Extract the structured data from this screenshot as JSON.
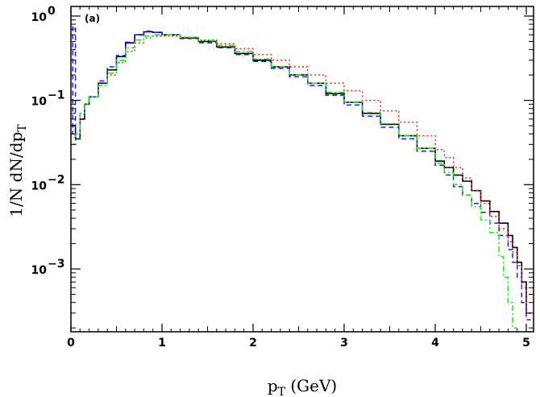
{
  "chart_data": {
    "type": "line",
    "panel_label": "(a)",
    "xlabel_main": "p",
    "xlabel_sub": "T",
    "xlabel_unit": " (GeV)",
    "ylabel_main": "1/N dN/dp",
    "ylabel_sub": "T",
    "xlim": [
      0,
      5.08
    ],
    "ylim": [
      0.00018,
      1.3
    ],
    "yscale": "log",
    "grid": false,
    "legend": "none",
    "x_ticks": [
      {
        "value": 0,
        "label": "0"
      },
      {
        "value": 1,
        "label": "1"
      },
      {
        "value": 2,
        "label": "2"
      },
      {
        "value": 3,
        "label": "3"
      },
      {
        "value": 4,
        "label": "4"
      },
      {
        "value": 5,
        "label": "5"
      }
    ],
    "y_ticks": [
      {
        "value": 1,
        "base": "10",
        "exp": "0"
      },
      {
        "value": 0.1,
        "base": "10",
        "exp": "−1"
      },
      {
        "value": 0.01,
        "base": "10",
        "exp": "−2"
      },
      {
        "value": 0.001,
        "base": "10",
        "exp": "−3"
      }
    ],
    "series": [
      {
        "color": "#000000",
        "style": "solid",
        "x": [
          0.0,
          0.05,
          0.1,
          0.15,
          0.2,
          0.3,
          0.4,
          0.5,
          0.6,
          0.7,
          0.8,
          0.9,
          1.0,
          1.2,
          1.4,
          1.6,
          1.8,
          2.0,
          2.2,
          2.4,
          2.6,
          2.8,
          3.0,
          3.2,
          3.4,
          3.6,
          3.8,
          4.0,
          4.1,
          4.2,
          4.3,
          4.4,
          4.5,
          4.6,
          4.7,
          4.8,
          4.85,
          4.9,
          4.95,
          5.0
        ],
        "y": [
          0.05,
          0.035,
          0.06,
          0.09,
          0.11,
          0.16,
          0.23,
          0.33,
          0.48,
          0.6,
          0.65,
          0.64,
          0.6,
          0.55,
          0.5,
          0.43,
          0.36,
          0.3,
          0.25,
          0.2,
          0.16,
          0.12,
          0.095,
          0.07,
          0.052,
          0.038,
          0.027,
          0.019,
          0.016,
          0.013,
          0.011,
          0.0085,
          0.0064,
          0.0048,
          0.0035,
          0.0025,
          0.0018,
          0.0012,
          0.0007,
          0.0003
        ]
      },
      {
        "color": "#1a1aff",
        "style": "dashed",
        "x": [
          0.0,
          0.02,
          0.05,
          0.1,
          0.15,
          0.2,
          0.3,
          0.4,
          0.5,
          0.6,
          0.7,
          0.8,
          0.9,
          1.0,
          1.2,
          1.4,
          1.6,
          1.8,
          2.0,
          2.2,
          2.4,
          2.6,
          2.8,
          3.0,
          3.2,
          3.4,
          3.6,
          3.8,
          4.0,
          4.1,
          4.2,
          4.3,
          4.4,
          4.5,
          4.6,
          4.7,
          4.8,
          4.85,
          4.9,
          4.95,
          5.0
        ],
        "y": [
          0.04,
          0.75,
          0.035,
          0.07,
          0.09,
          0.11,
          0.17,
          0.25,
          0.34,
          0.49,
          0.6,
          0.66,
          0.64,
          0.6,
          0.54,
          0.48,
          0.42,
          0.35,
          0.29,
          0.24,
          0.19,
          0.15,
          0.115,
          0.088,
          0.065,
          0.048,
          0.035,
          0.025,
          0.017,
          0.013,
          0.0095,
          0.0075,
          0.006,
          0.0047,
          0.0035,
          0.0025,
          0.0017,
          0.0012,
          0.0008,
          0.0004,
          0.00025
        ]
      },
      {
        "color": "#ff1a1a",
        "style": "dotted",
        "x": [
          0.0,
          0.05,
          0.1,
          0.15,
          0.2,
          0.3,
          0.4,
          0.5,
          0.6,
          0.7,
          0.8,
          0.9,
          1.0,
          1.2,
          1.4,
          1.6,
          1.8,
          2.0,
          2.2,
          2.4,
          2.6,
          2.8,
          3.0,
          3.2,
          3.4,
          3.6,
          3.8,
          4.0,
          4.1,
          4.2,
          4.3,
          4.4,
          4.5,
          4.6,
          4.7,
          4.8,
          4.85,
          4.9,
          4.95,
          5.0
        ],
        "y": [
          0.03,
          0.04,
          0.07,
          0.09,
          0.11,
          0.15,
          0.2,
          0.28,
          0.38,
          0.48,
          0.55,
          0.58,
          0.58,
          0.56,
          0.52,
          0.47,
          0.41,
          0.35,
          0.3,
          0.25,
          0.2,
          0.16,
          0.13,
          0.1,
          0.075,
          0.055,
          0.038,
          0.026,
          0.021,
          0.016,
          0.012,
          0.0085,
          0.006,
          0.0042,
          0.003,
          0.0021,
          0.0016,
          0.0011,
          0.0006,
          0.0003
        ]
      },
      {
        "color": "#19e619",
        "style": "dashdot",
        "x": [
          0.0,
          0.05,
          0.1,
          0.15,
          0.2,
          0.3,
          0.4,
          0.5,
          0.6,
          0.7,
          0.8,
          0.9,
          1.0,
          1.2,
          1.4,
          1.6,
          1.8,
          2.0,
          2.2,
          2.4,
          2.6,
          2.8,
          3.0,
          3.2,
          3.4,
          3.6,
          3.8,
          4.0,
          4.1,
          4.2,
          4.3,
          4.4,
          4.5,
          4.6,
          4.7,
          4.75,
          4.8,
          4.85
        ],
        "y": [
          0.03,
          0.04,
          0.07,
          0.09,
          0.11,
          0.15,
          0.21,
          0.3,
          0.42,
          0.52,
          0.58,
          0.6,
          0.6,
          0.56,
          0.51,
          0.45,
          0.38,
          0.31,
          0.25,
          0.2,
          0.16,
          0.125,
          0.095,
          0.072,
          0.053,
          0.038,
          0.027,
          0.018,
          0.014,
          0.01,
          0.0075,
          0.0055,
          0.0038,
          0.0027,
          0.0014,
          0.0008,
          0.0004,
          0.0002
        ]
      }
    ]
  }
}
